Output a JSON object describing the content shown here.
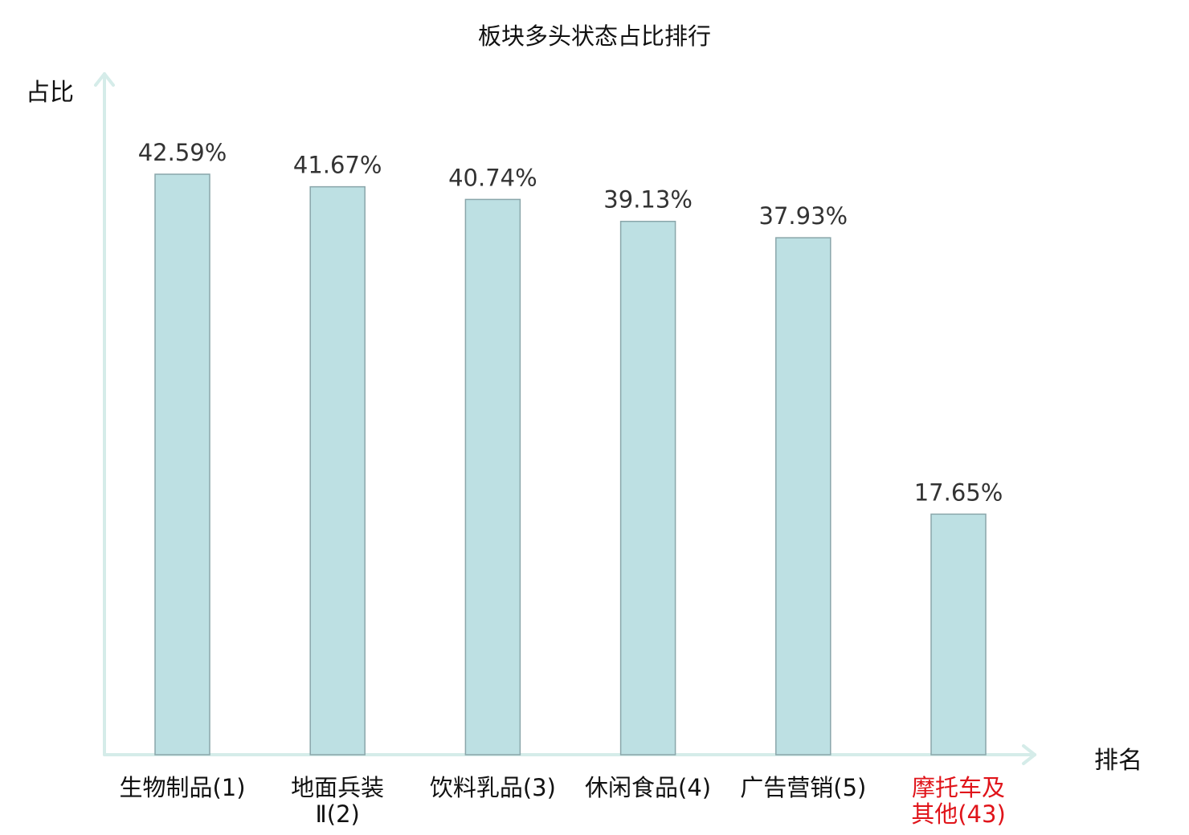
{
  "chart_data": {
    "type": "bar",
    "title": "板块多头状态占比排行",
    "xlabel": "排名",
    "ylabel": "占比",
    "categories": [
      {
        "name_lines": [
          "生物制品(1)"
        ],
        "highlight": false
      },
      {
        "name_lines": [
          "地面兵装",
          "Ⅱ(2)"
        ],
        "highlight": false
      },
      {
        "name_lines": [
          "饮料乳品(3)"
        ],
        "highlight": false
      },
      {
        "name_lines": [
          "休闲食品(4)"
        ],
        "highlight": false
      },
      {
        "name_lines": [
          "广告营销(5)"
        ],
        "highlight": false
      },
      {
        "name_lines": [
          "摩托车及",
          "其他(43)"
        ],
        "highlight": true
      }
    ],
    "values": [
      42.59,
      41.67,
      40.74,
      39.13,
      37.93,
      17.65
    ],
    "value_labels": [
      "42.59%",
      "41.67%",
      "40.74%",
      "39.13%",
      "37.93%",
      "17.65%"
    ],
    "ylim": [
      0,
      50
    ],
    "grid": false,
    "legend": "none",
    "colors": {
      "bar_fill": "#bde0e3",
      "bar_stroke": "#8aa6aa",
      "axis": "#d5ece9",
      "highlight_text": "#e0141a"
    }
  }
}
